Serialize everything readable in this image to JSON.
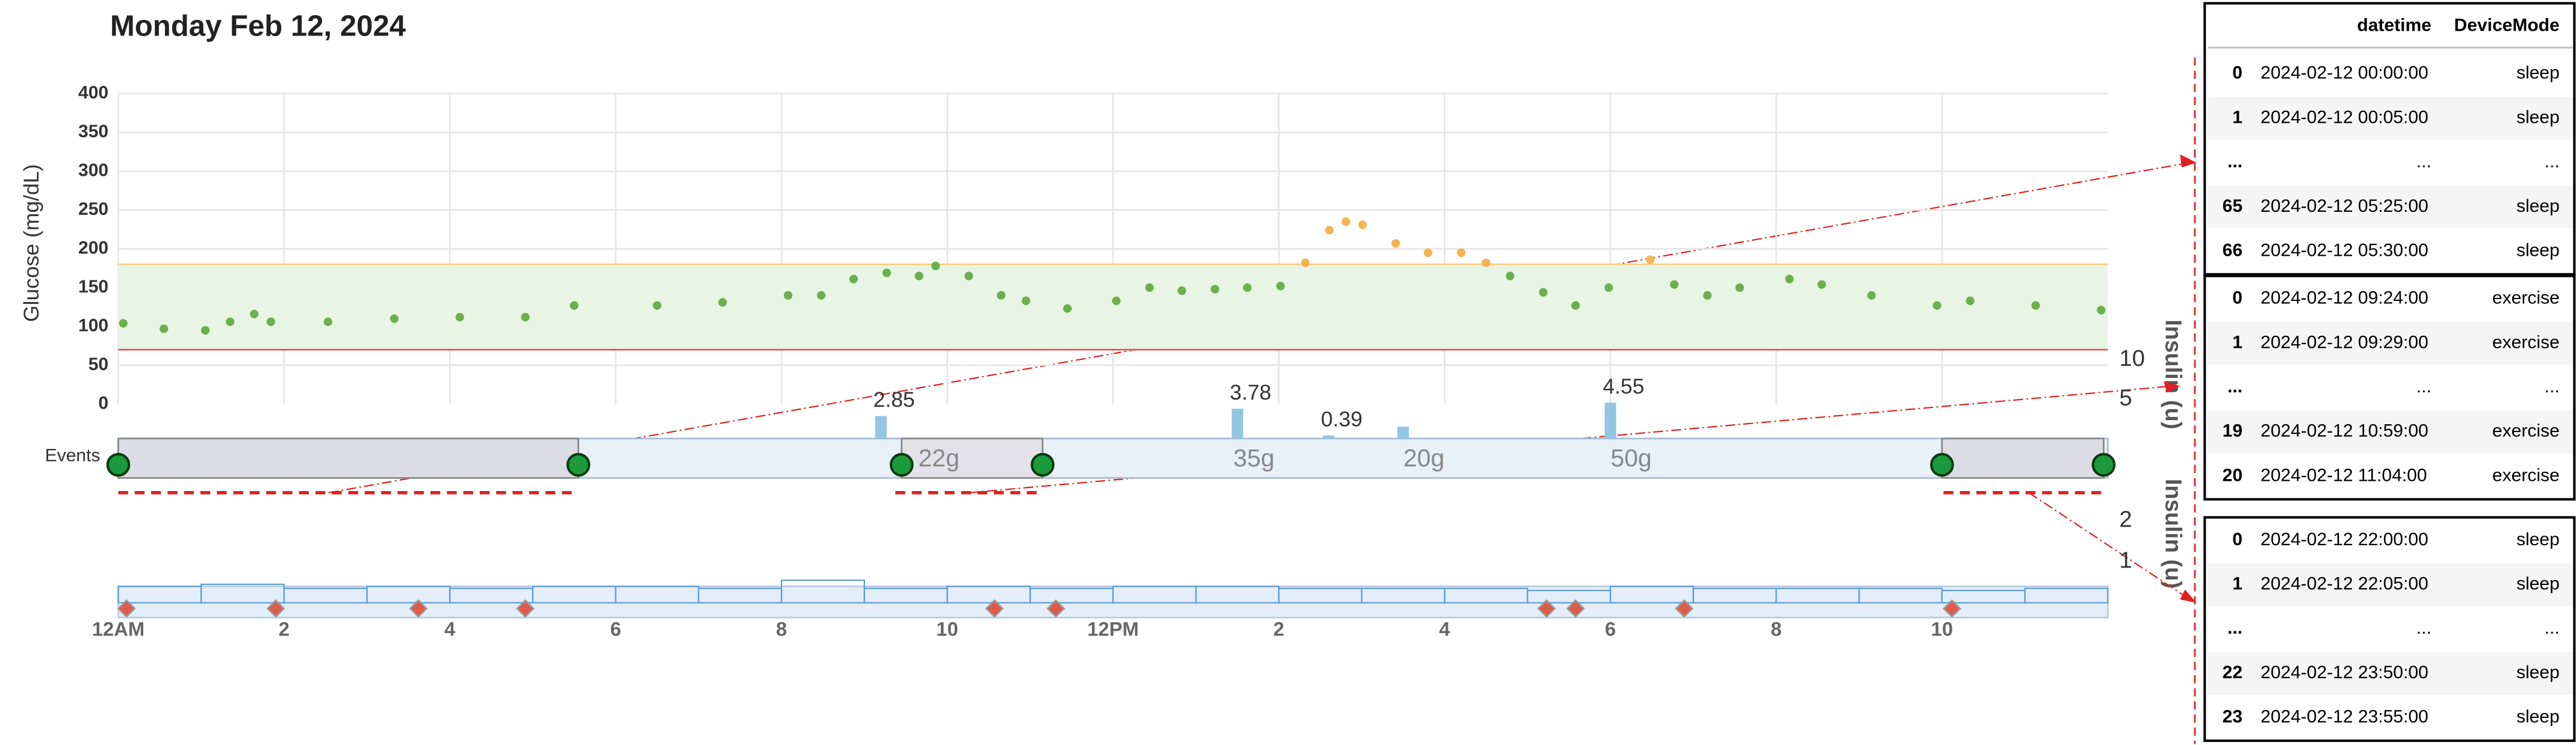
{
  "chart_data": [
    {
      "type": "scatter",
      "title": "Monday Feb 12, 2024",
      "y_label": "Glucose (mg/dL)",
      "x": [
        0.06,
        0.55,
        1.05,
        1.35,
        1.64,
        1.84,
        2.53,
        3.33,
        4.12,
        4.91,
        5.5,
        6.5,
        7.29,
        8.08,
        8.48,
        8.87,
        9.27,
        9.66,
        9.86,
        10.26,
        10.65,
        10.95,
        11.45,
        12.04,
        12.44,
        12.83,
        13.23,
        13.62,
        14.02,
        14.32,
        14.61,
        14.81,
        15.01,
        15.41,
        15.8,
        16.2,
        16.5,
        16.79,
        17.19,
        17.58,
        17.98,
        18.48,
        18.77,
        19.17,
        19.56,
        20.16,
        20.55,
        21.15,
        21.94,
        22.34,
        23.13,
        23.92
      ],
      "values": [
        104,
        97,
        95,
        106,
        116,
        106,
        106,
        110,
        112,
        112,
        127,
        127,
        131,
        140,
        140,
        161,
        169,
        165,
        178,
        165,
        140,
        133,
        123,
        133,
        150,
        146,
        148,
        150,
        152,
        182,
        224,
        235,
        231,
        207,
        195,
        195,
        182,
        165,
        144,
        127,
        150,
        186,
        154,
        140,
        150,
        161,
        154,
        140,
        127,
        133,
        127,
        121
      ],
      "color": "#6ab04c",
      "high_color": "#f5b352",
      "target_range": [
        70,
        180
      ],
      "band_color": "#e8f4e4",
      "low_line_color": "#e05555",
      "high_line_color": "#f5d080",
      "xlim": [
        0,
        24
      ],
      "ylim": [
        0,
        400
      ],
      "yticks": [
        0,
        50,
        100,
        150,
        200,
        250,
        300,
        350,
        400
      ],
      "xticks": [
        {
          "value": 0,
          "label": "12AM"
        },
        2,
        4,
        6,
        8,
        10,
        {
          "value": 12,
          "label": "12PM"
        },
        {
          "value": 14,
          "label": "2"
        },
        {
          "value": 16,
          "label": "4"
        },
        {
          "value": 18,
          "label": "6"
        },
        {
          "value": 20,
          "label": "8"
        },
        {
          "value": 22,
          "label": "10"
        }
      ],
      "grid": true
    },
    {
      "type": "events",
      "label": "Events",
      "y_label": "Insulin (u)",
      "sleep_periods": [
        [
          0,
          5.55
        ],
        [
          22,
          23.95
        ]
      ],
      "exercise_periods": [
        [
          9.45,
          11.15
        ]
      ],
      "carbs": {
        "x": [
          9.9,
          13.7,
          15.75,
          18.25
        ],
        "values": [
          22,
          35,
          20,
          50
        ],
        "value_labels": [
          "22g",
          "35g",
          "20g",
          "50g"
        ]
      },
      "bolus": {
        "x": [
          9.2,
          13.5,
          14.6,
          15.5,
          18.0
        ],
        "values": [
          2.85,
          3.78,
          0.39,
          1.5,
          4.55
        ],
        "value_labels": [
          "2.85",
          "3.78",
          "0.39",
          null,
          "4.55"
        ],
        "color": "#93c6e2"
      },
      "ylim": [
        0,
        10
      ],
      "yticks": [
        5,
        10
      ]
    },
    {
      "type": "step",
      "y_label": "Insulin (u)",
      "x": [
        0,
        1,
        2,
        3,
        4,
        5,
        6,
        7,
        8,
        9,
        10,
        11,
        12,
        13,
        14,
        15,
        16,
        17,
        18,
        19,
        20,
        21,
        22,
        23
      ],
      "values": [
        0.4,
        0.45,
        0.35,
        0.4,
        0.35,
        0.4,
        0.4,
        0.35,
        0.55,
        0.35,
        0.4,
        0.35,
        0.4,
        0.4,
        0.35,
        0.35,
        0.35,
        0.3,
        0.4,
        0.35,
        0.35,
        0.35,
        0.3,
        0.35
      ],
      "color": "#5b9bd5",
      "markers_x": [
        0.1,
        1.9,
        3.62,
        4.91,
        10.57,
        11.31,
        17.23,
        17.58,
        18.89,
        22.12
      ],
      "xlim": [
        0,
        24
      ],
      "ylim": [
        0,
        2
      ],
      "yticks": [
        1,
        2
      ]
    }
  ],
  "tables": [
    {
      "columns": [
        "datetime",
        "DeviceMode"
      ],
      "rows": [
        [
          "0",
          "2024-02-12 00:00:00",
          "sleep"
        ],
        [
          "1",
          "2024-02-12 00:05:00",
          "sleep"
        ],
        [
          "...",
          "...",
          "..."
        ],
        [
          "65",
          "2024-02-12 05:25:00",
          "sleep"
        ],
        [
          "66",
          "2024-02-12 05:30:00",
          "sleep"
        ]
      ]
    },
    {
      "rows": [
        [
          "0",
          "2024-02-12 09:24:00",
          "exercise"
        ],
        [
          "1",
          "2024-02-12 09:29:00",
          "exercise"
        ],
        [
          "...",
          "...",
          "..."
        ],
        [
          "19",
          "2024-02-12 10:59:00",
          "exercise"
        ],
        [
          "20",
          "2024-02-12 11:04:00",
          "exercise"
        ]
      ]
    },
    {
      "rows": [
        [
          "0",
          "2024-02-12 22:00:00",
          "sleep"
        ],
        [
          "1",
          "2024-02-12 22:05:00",
          "sleep"
        ],
        [
          "...",
          "...",
          "..."
        ],
        [
          "22",
          "2024-02-12 23:50:00",
          "sleep"
        ],
        [
          "23",
          "2024-02-12 23:55:00",
          "sleep"
        ]
      ]
    }
  ]
}
